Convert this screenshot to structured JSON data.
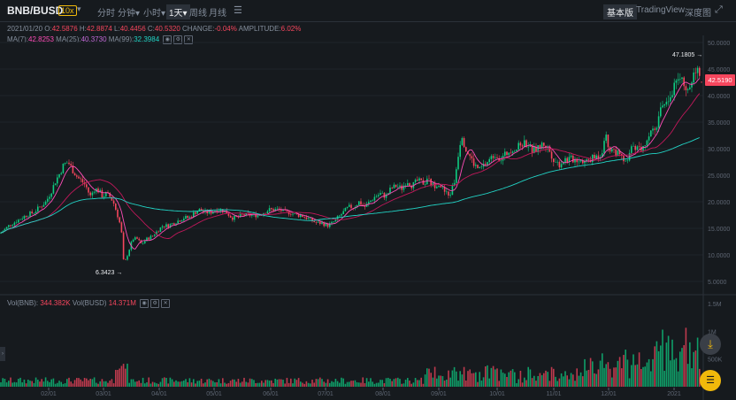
{
  "toolbar": {
    "pair": "BNB/BUSD",
    "leverage": "10x",
    "dropdown": "▾",
    "timeframes": [
      {
        "label": "分时",
        "active": false
      },
      {
        "label": "分钟▾",
        "active": false
      },
      {
        "label": "小时▾",
        "active": false
      },
      {
        "label": "1天▾",
        "active": true
      },
      {
        "label": "周线",
        "active": false
      },
      {
        "label": "月线",
        "active": false
      }
    ],
    "indicator_icon": "☰",
    "views": [
      {
        "label": "基本版",
        "active": true
      },
      {
        "label": "TradingView",
        "active": false
      },
      {
        "label": "深度图",
        "active": false
      }
    ],
    "fullscreen_icon": "⤢"
  },
  "ohlc": {
    "date": "2021/01/20",
    "o_label": "O:",
    "o": "42.5876",
    "h_label": "H:",
    "h": "42.8874",
    "l_label": "L:",
    "l": "40.4456",
    "c_label": "C:",
    "c": "40.5320",
    "change_label": "CHANGE:",
    "change": "-0.04%",
    "amp_label": "AMPLITUDE:",
    "amp": "6.02%"
  },
  "ma": {
    "ma7_label": "MA(7):",
    "ma7": "42.8253",
    "ma25_label": "MA(25):",
    "ma25": "40.3730",
    "ma99_label": "MA(99):",
    "ma99": "32.3984"
  },
  "volume": {
    "bnb_label": "Vol(BNB):",
    "bnb": "344.382K",
    "busd_label": "Vol(BUSD)",
    "busd": "14.371M"
  },
  "markers": {
    "last_price": "42.5190",
    "high": "47.1805",
    "low": "6.3423"
  },
  "colors": {
    "up": "#0ecb81",
    "down": "#f6465d",
    "ma7": "#ff4db8",
    "ma25": "#c2185b",
    "ma99": "#22d3c5"
  },
  "chart_data": {
    "type": "candlestick",
    "price_ticks": [
      "50.0000",
      "45.0000",
      "40.0000",
      "35.0000",
      "30.0000",
      "25.0000",
      "20.0000",
      "15.0000",
      "10.0000",
      "5.0000"
    ],
    "volume_ticks": [
      "1.5M",
      "1M",
      "500K"
    ],
    "x_ticks": [
      "02/01",
      "03/01",
      "04/01",
      "05/01",
      "06/01",
      "07/01",
      "08/01",
      "09/01",
      "10/01",
      "11/01",
      "12/01",
      "2021"
    ],
    "price_path": [
      [
        0,
        14
      ],
      [
        10,
        15.5
      ],
      [
        20,
        16.5
      ],
      [
        30,
        17.5
      ],
      [
        38,
        18
      ],
      [
        45,
        19
      ],
      [
        52,
        20
      ],
      [
        58,
        22
      ],
      [
        63,
        24
      ],
      [
        68,
        25.5
      ],
      [
        72,
        27
      ],
      [
        77,
        27.5
      ],
      [
        82,
        26
      ],
      [
        88,
        24.5
      ],
      [
        92,
        24
      ],
      [
        97,
        23
      ],
      [
        102,
        21
      ],
      [
        107,
        22.5
      ],
      [
        112,
        22
      ],
      [
        116,
        21
      ],
      [
        120,
        21.5
      ],
      [
        124,
        21
      ],
      [
        128,
        20
      ],
      [
        132,
        18
      ],
      [
        137,
        15
      ],
      [
        140,
        8
      ],
      [
        143,
        9.5
      ],
      [
        146,
        11
      ],
      [
        150,
        13
      ],
      [
        155,
        13
      ],
      [
        160,
        12
      ],
      [
        166,
        13
      ],
      [
        172,
        13.5
      ],
      [
        178,
        14.5
      ],
      [
        184,
        15.5
      ],
      [
        190,
        15.5
      ],
      [
        196,
        16
      ],
      [
        202,
        16.5
      ],
      [
        208,
        17
      ],
      [
        214,
        17
      ],
      [
        220,
        18
      ],
      [
        226,
        18.5
      ],
      [
        232,
        18
      ],
      [
        238,
        18
      ],
      [
        244,
        18.5
      ],
      [
        250,
        18.5
      ],
      [
        256,
        18
      ],
      [
        262,
        17
      ],
      [
        268,
        17
      ],
      [
        274,
        17.5
      ],
      [
        280,
        17.5
      ],
      [
        286,
        17.5
      ],
      [
        292,
        17.5
      ],
      [
        298,
        18
      ],
      [
        304,
        18.5
      ],
      [
        310,
        18.5
      ],
      [
        316,
        18.5
      ],
      [
        322,
        18
      ],
      [
        328,
        18
      ],
      [
        334,
        17.5
      ],
      [
        340,
        17.5
      ],
      [
        346,
        17
      ],
      [
        352,
        16.5
      ],
      [
        358,
        16
      ],
      [
        364,
        16
      ],
      [
        370,
        15.5
      ],
      [
        376,
        16
      ],
      [
        382,
        17
      ],
      [
        388,
        18
      ],
      [
        394,
        19
      ],
      [
        400,
        19
      ],
      [
        406,
        20
      ],
      [
        412,
        19
      ],
      [
        418,
        20
      ],
      [
        424,
        21
      ],
      [
        430,
        21.5
      ],
      [
        436,
        21
      ],
      [
        442,
        22.5
      ],
      [
        448,
        23
      ],
      [
        454,
        22.5
      ],
      [
        460,
        24
      ],
      [
        466,
        23
      ],
      [
        472,
        24
      ],
      [
        478,
        23.5
      ],
      [
        484,
        24
      ],
      [
        490,
        23
      ],
      [
        496,
        23.5
      ],
      [
        502,
        22
      ],
      [
        508,
        21
      ],
      [
        514,
        24
      ],
      [
        518,
        29
      ],
      [
        522,
        33
      ],
      [
        526,
        30
      ],
      [
        530,
        29
      ],
      [
        536,
        27
      ],
      [
        542,
        26
      ],
      [
        548,
        27
      ],
      [
        554,
        28
      ],
      [
        560,
        29
      ],
      [
        566,
        28
      ],
      [
        572,
        29
      ],
      [
        578,
        30
      ],
      [
        584,
        30
      ],
      [
        590,
        31
      ],
      [
        596,
        31
      ],
      [
        602,
        29.5
      ],
      [
        608,
        30
      ],
      [
        614,
        31
      ],
      [
        620,
        30
      ],
      [
        626,
        28
      ],
      [
        632,
        27
      ],
      [
        638,
        28
      ],
      [
        644,
        28
      ],
      [
        650,
        28
      ],
      [
        656,
        28
      ],
      [
        662,
        27.5
      ],
      [
        668,
        28
      ],
      [
        674,
        28.5
      ],
      [
        680,
        29
      ],
      [
        684,
        33
      ],
      [
        688,
        30
      ],
      [
        692,
        30
      ],
      [
        698,
        29
      ],
      [
        704,
        28
      ],
      [
        708,
        27
      ],
      [
        712,
        29
      ],
      [
        716,
        31
      ],
      [
        720,
        30
      ],
      [
        726,
        30
      ],
      [
        732,
        32
      ],
      [
        738,
        34
      ],
      [
        744,
        35
      ],
      [
        748,
        38
      ],
      [
        752,
        39
      ],
      [
        756,
        40
      ],
      [
        760,
        41
      ],
      [
        764,
        43
      ],
      [
        768,
        44
      ],
      [
        772,
        42
      ],
      [
        776,
        40
      ],
      [
        780,
        42
      ],
      [
        784,
        44
      ],
      [
        788,
        46
      ],
      [
        792,
        42.5
      ]
    ],
    "volume_hint": "bars across range, spiking near 2021"
  }
}
